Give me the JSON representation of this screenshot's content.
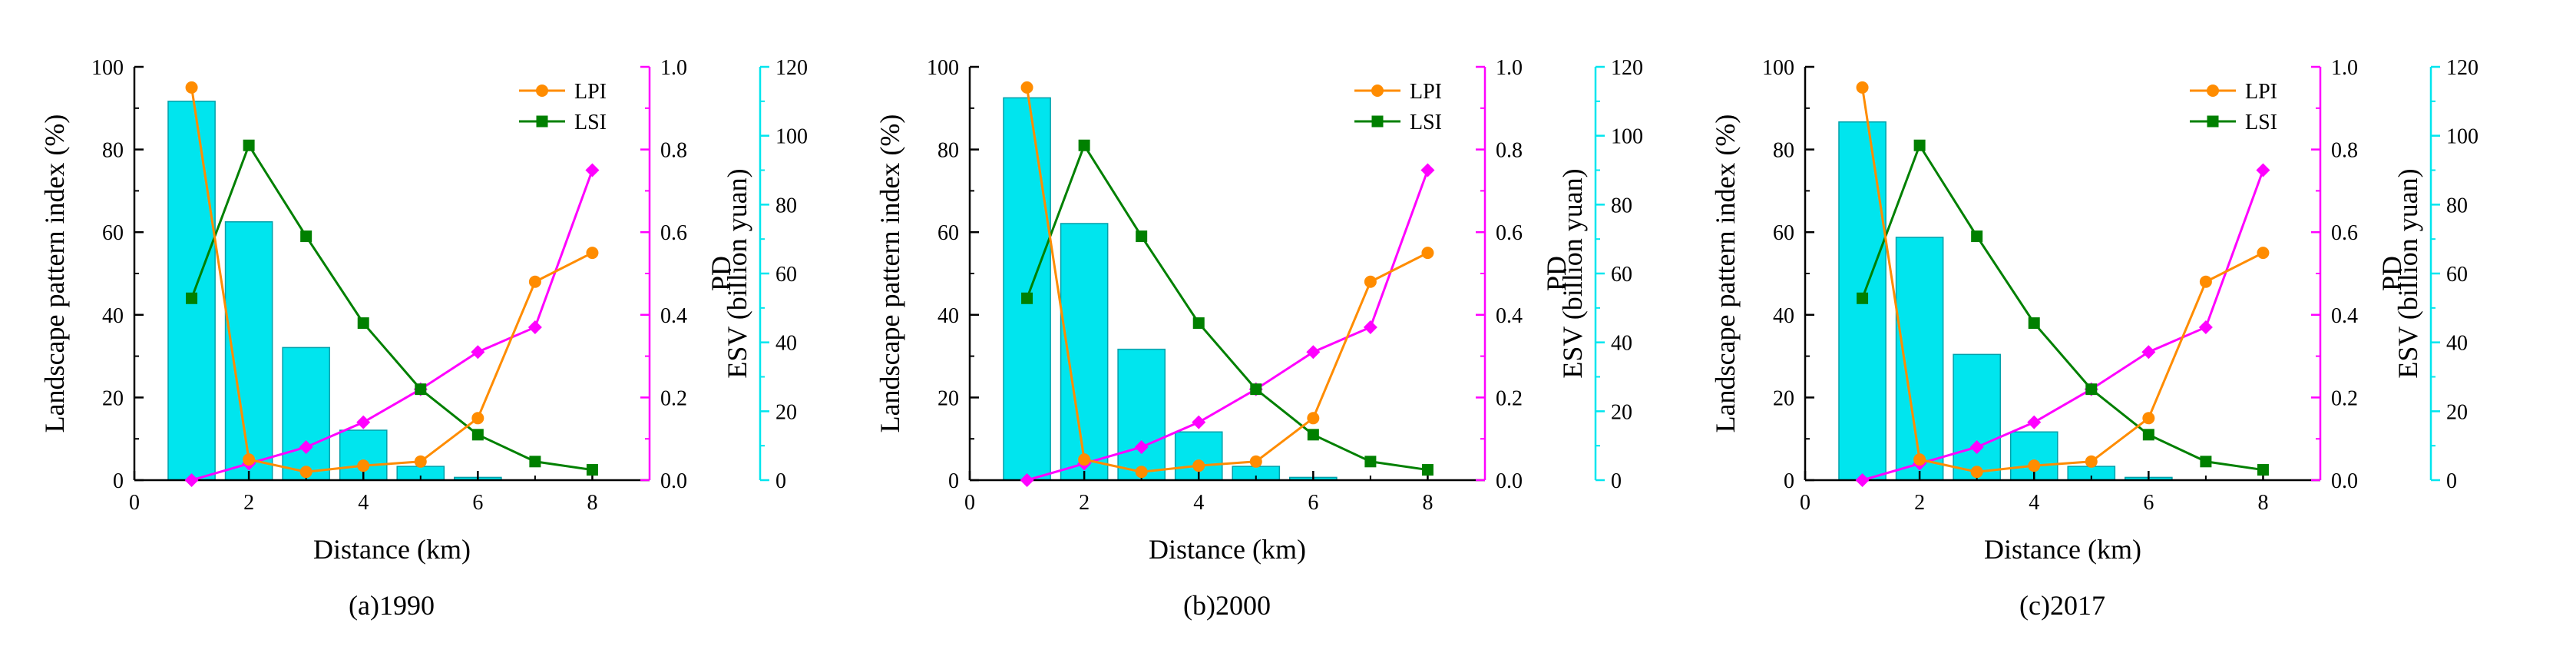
{
  "colors": {
    "lpi": "#ff8c00",
    "lsi": "#008000",
    "pd": "#ff00ff",
    "esv_fill": "#00e5ee",
    "esv_stroke": "#00a0aa",
    "esv_axis": "#00e5ee",
    "pd_axis": "#ff00ff"
  },
  "chart_data": [
    {
      "type": "bar+line",
      "caption": "(a)1990",
      "xlabel": "Distance (km)",
      "ylabel_left": "Landscape pattern index (%)",
      "ylabel_pd": "PD",
      "ylabel_esv": "ESV (billion yuan)",
      "xlim": [
        0,
        9
      ],
      "ylim_left": [
        0,
        100
      ],
      "ylim_pd": [
        0,
        1.0
      ],
      "ylim_esv": [
        0,
        120
      ],
      "x_ticks": [
        "0",
        "2",
        "4",
        "6",
        "8"
      ],
      "y_left_ticks": [
        "0",
        "20",
        "40",
        "60",
        "80",
        "100"
      ],
      "y_pd_ticks": [
        "0.0",
        "0.2",
        "0.4",
        "0.6",
        "0.8",
        "1.0"
      ],
      "y_esv_ticks": [
        "0",
        "20",
        "40",
        "60",
        "80",
        "100",
        "120"
      ],
      "legend": [
        "LPI",
        "LSI"
      ],
      "x": [
        1,
        2,
        3,
        4,
        5,
        6,
        7,
        8
      ],
      "esv": [
        110,
        75,
        38.5,
        14.5,
        4,
        0.8,
        0,
        0
      ],
      "lpi": [
        95,
        5,
        2,
        3.5,
        4.5,
        15,
        48,
        55
      ],
      "lsi": [
        44,
        81,
        59,
        38,
        22,
        11,
        4.5,
        2.5
      ],
      "pd": [
        0,
        0.04,
        0.08,
        0.14,
        0.22,
        0.31,
        0.37,
        0.75
      ]
    },
    {
      "type": "bar+line",
      "caption": "(b)2000",
      "xlabel": "Distance (km)",
      "ylabel_left": "Landscape pattern index (%)",
      "ylabel_pd": "PD",
      "ylabel_esv": "ESV (billion yuan)",
      "xlim": [
        0,
        9
      ],
      "ylim_left": [
        0,
        100
      ],
      "ylim_pd": [
        0,
        1.0
      ],
      "ylim_esv": [
        0,
        120
      ],
      "x_ticks": [
        "0",
        "2",
        "4",
        "6",
        "8"
      ],
      "y_left_ticks": [
        "0",
        "20",
        "40",
        "60",
        "80",
        "100"
      ],
      "y_pd_ticks": [
        "0.0",
        "0.2",
        "0.4",
        "0.6",
        "0.8",
        "1.0"
      ],
      "y_esv_ticks": [
        "0",
        "20",
        "40",
        "60",
        "80",
        "100",
        "120"
      ],
      "legend": [
        "LPI",
        "LSI"
      ],
      "x": [
        1,
        2,
        3,
        4,
        5,
        6,
        7,
        8
      ],
      "esv": [
        111,
        74.5,
        38,
        14,
        4,
        0.8,
        0,
        0
      ],
      "lpi": [
        95,
        5,
        2,
        3.5,
        4.5,
        15,
        48,
        55
      ],
      "lsi": [
        44,
        81,
        59,
        38,
        22,
        11,
        4.5,
        2.5
      ],
      "pd": [
        0,
        0.04,
        0.08,
        0.14,
        0.22,
        0.31,
        0.37,
        0.75
      ]
    },
    {
      "type": "bar+line",
      "caption": "(c)2017",
      "xlabel": "Distance (km)",
      "ylabel_left": "Landscape pattern index (%)",
      "ylabel_pd": "PD",
      "ylabel_esv": "ESV (billion yuan)",
      "xlim": [
        0,
        9
      ],
      "ylim_left": [
        0,
        100
      ],
      "ylim_pd": [
        0,
        1.0
      ],
      "ylim_esv": [
        0,
        120
      ],
      "x_ticks": [
        "0",
        "2",
        "4",
        "6",
        "8"
      ],
      "y_left_ticks": [
        "0",
        "20",
        "40",
        "60",
        "80",
        "100"
      ],
      "y_pd_ticks": [
        "0.0",
        "0.2",
        "0.4",
        "0.6",
        "0.8",
        "1.0"
      ],
      "y_esv_ticks": [
        "0",
        "20",
        "40",
        "60",
        "80",
        "100",
        "120"
      ],
      "legend": [
        "LPI",
        "LSI"
      ],
      "x": [
        1,
        2,
        3,
        4,
        5,
        6,
        7,
        8
      ],
      "esv": [
        104,
        70.5,
        36.5,
        14,
        4,
        0.8,
        0,
        0
      ],
      "lpi": [
        95,
        5,
        2,
        3.5,
        4.5,
        15,
        48,
        55
      ],
      "lsi": [
        44,
        81,
        59,
        38,
        22,
        11,
        4.5,
        2.5
      ],
      "pd": [
        0,
        0.04,
        0.08,
        0.14,
        0.22,
        0.31,
        0.37,
        0.75
      ]
    }
  ]
}
